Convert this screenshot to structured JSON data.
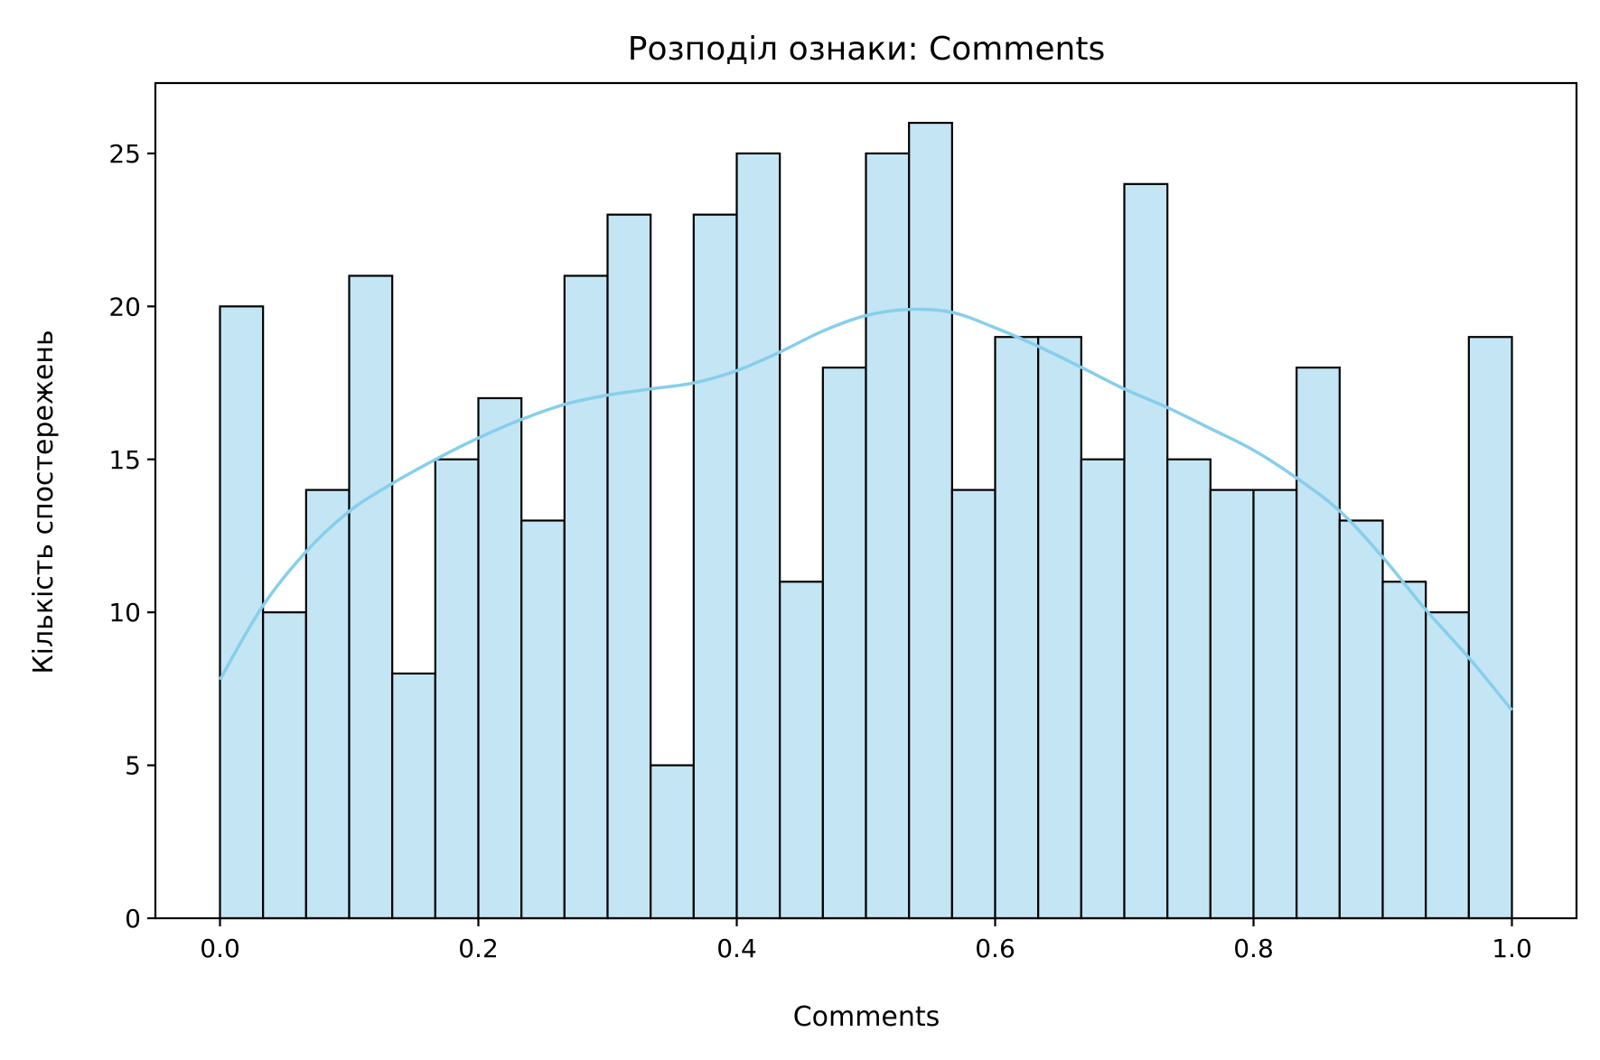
{
  "chart_data": {
    "type": "bar",
    "title": "Розподіл ознаки: Comments",
    "xlabel": "Comments",
    "ylabel": "Кількість спостережень",
    "xlim": [
      -0.05,
      1.05
    ],
    "ylim": [
      0,
      27.3
    ],
    "x_ticks": [
      {
        "value": 0.0,
        "label": "0.0"
      },
      {
        "value": 0.2,
        "label": "0.2"
      },
      {
        "value": 0.4,
        "label": "0.4"
      },
      {
        "value": 0.6,
        "label": "0.6"
      },
      {
        "value": 0.8,
        "label": "0.8"
      },
      {
        "value": 1.0,
        "label": "1.0"
      }
    ],
    "y_ticks": [
      {
        "value": 0,
        "label": "0"
      },
      {
        "value": 5,
        "label": "5"
      },
      {
        "value": 10,
        "label": "10"
      },
      {
        "value": 15,
        "label": "15"
      },
      {
        "value": 20,
        "label": "20"
      },
      {
        "value": 25,
        "label": "25"
      }
    ],
    "bin_range": [
      0,
      1
    ],
    "bin_counts": [
      20,
      10,
      14,
      21,
      8,
      15,
      17,
      13,
      21,
      23,
      5,
      23,
      25,
      11,
      18,
      25,
      26,
      14,
      19,
      19,
      15,
      24,
      15,
      14,
      14,
      18,
      13,
      11,
      10,
      19
    ],
    "kde": {
      "x": [
        0.0,
        0.033,
        0.067,
        0.1,
        0.133,
        0.167,
        0.2,
        0.233,
        0.267,
        0.3,
        0.333,
        0.367,
        0.4,
        0.433,
        0.467,
        0.5,
        0.533,
        0.567,
        0.6,
        0.633,
        0.667,
        0.7,
        0.733,
        0.767,
        0.8,
        0.833,
        0.867,
        0.9,
        0.933,
        0.967,
        1.0
      ],
      "y": [
        7.8,
        10.2,
        12.0,
        13.3,
        14.2,
        15.0,
        15.7,
        16.3,
        16.8,
        17.1,
        17.3,
        17.5,
        17.9,
        18.5,
        19.2,
        19.7,
        19.9,
        19.8,
        19.3,
        18.7,
        18.0,
        17.3,
        16.7,
        16.0,
        15.3,
        14.4,
        13.3,
        11.8,
        10.1,
        8.5,
        6.8
      ]
    },
    "colors": {
      "bar_fill": "#c3e5f4",
      "bar_edge": "#000000",
      "kde_line": "#87ceeb"
    },
    "grid": false,
    "legend": "none"
  }
}
